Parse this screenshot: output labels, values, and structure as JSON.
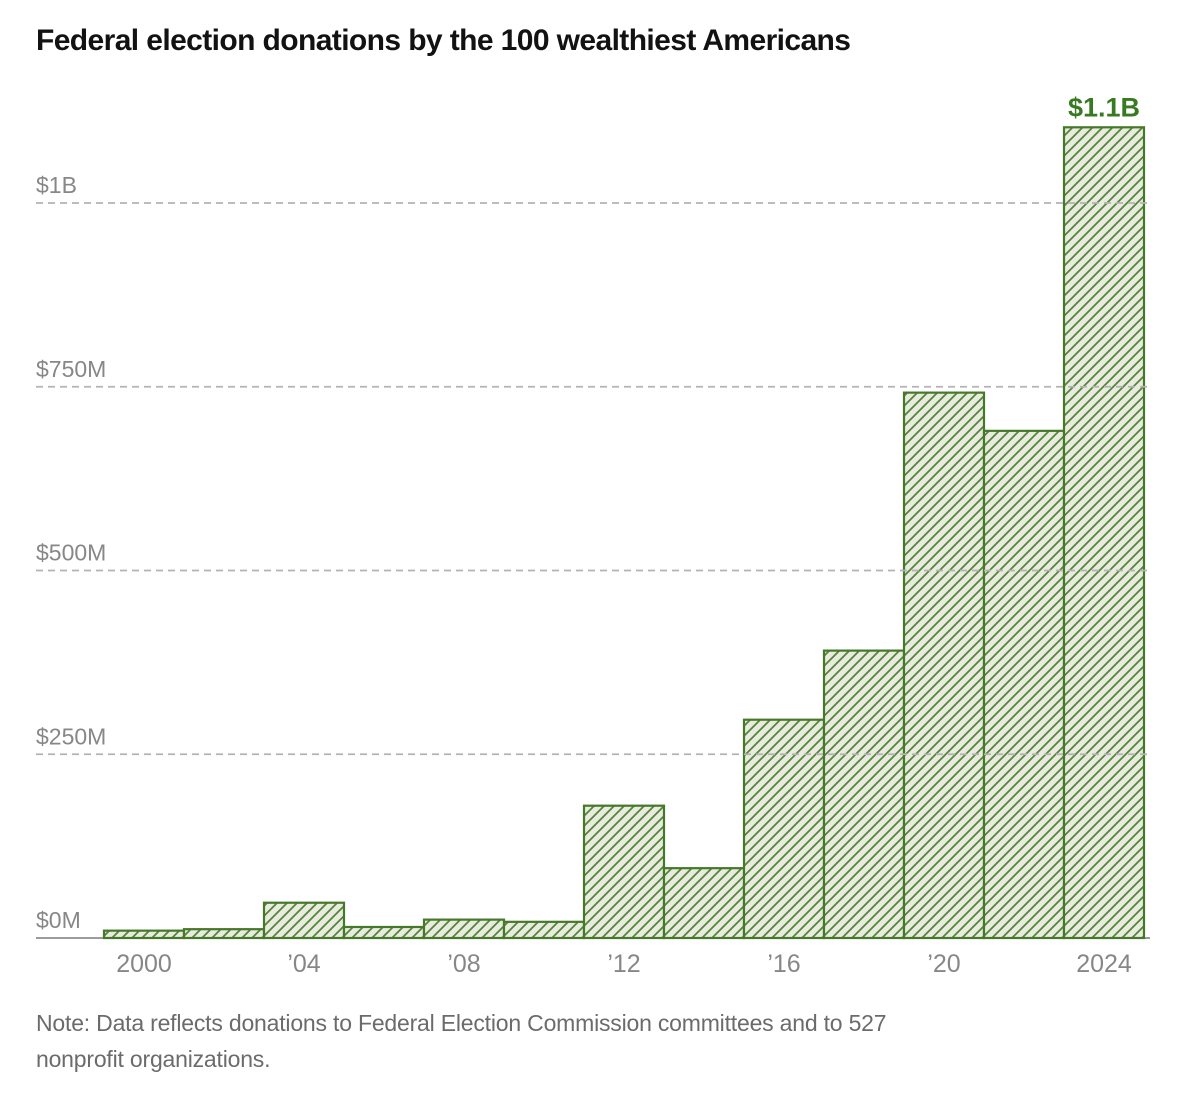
{
  "title": "Federal election donations by the 100 wealthiest Americans",
  "note": "Note: Data reflects donations to Federal Election Commission committees and to 527\nnonprofit organizations.",
  "colors": {
    "title_text": "#121212",
    "bar_fill": "#e9ebdf",
    "bar_hatch": "#54863a",
    "bar_border": "#46782a",
    "annotation_green": "#387a21",
    "axis_label": "#878787",
    "gridline": "#b3b3b3",
    "baseline": "#9c9c9c",
    "note_text": "#6b6b6b"
  },
  "chart_data": {
    "type": "bar",
    "title": "Federal election donations by the 100 wealthiest Americans",
    "unit": "millions USD",
    "categories": [
      2000,
      2002,
      2004,
      2006,
      2008,
      2010,
      2012,
      2014,
      2016,
      2018,
      2020,
      2022,
      2024
    ],
    "values": [
      10,
      12,
      48,
      15,
      25,
      22,
      180,
      95,
      297,
      391,
      742,
      690,
      1103
    ],
    "ylim": [
      0,
      1150
    ],
    "yticks": [
      {
        "value": 0,
        "label": "$0M"
      },
      {
        "value": 250,
        "label": "$250M"
      },
      {
        "value": 500,
        "label": "$500M"
      },
      {
        "value": 750,
        "label": "$750M"
      },
      {
        "value": 1000,
        "label": "$1B"
      }
    ],
    "xticks": [
      {
        "year": 2000,
        "label": "2000"
      },
      {
        "year": 2004,
        "label": "’04"
      },
      {
        "year": 2008,
        "label": "’08"
      },
      {
        "year": 2012,
        "label": "’12"
      },
      {
        "year": 2016,
        "label": "’16"
      },
      {
        "year": 2020,
        "label": "’20"
      },
      {
        "year": 2024,
        "label": "2024"
      }
    ],
    "annotation": {
      "year": 2024,
      "label": "$1.1B"
    },
    "grid": "horizontal-dashed",
    "legend": false,
    "bar_style": "diagonal-hatch",
    "note": "Note: Data reflects donations to Federal Election Commission committees and to 527 nonprofit organizations."
  }
}
